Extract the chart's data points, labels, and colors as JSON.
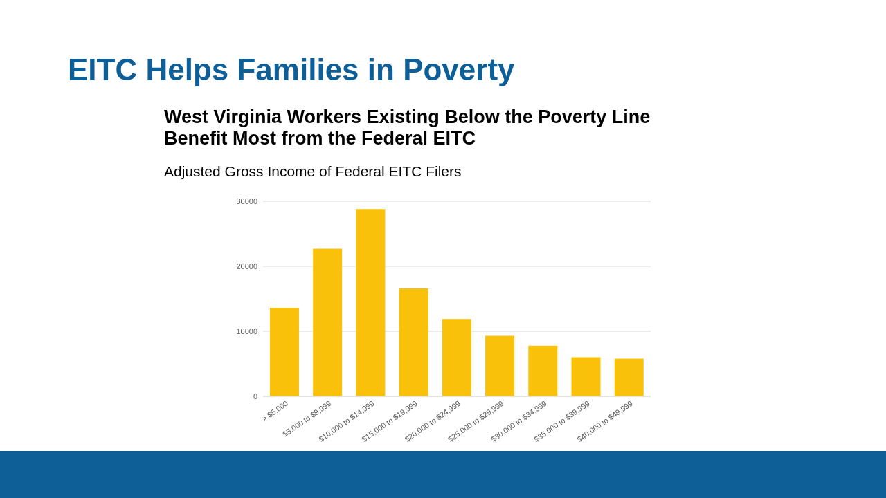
{
  "chart_data": {
    "type": "bar",
    "title": "EITC Helps Families in Poverty",
    "subtitle": "West Virginia Workers Existing Below the Poverty Line\nBenefit Most from the Federal EITC",
    "annotations": [
      "Adjusted Gross Income of Federal EITC Filers"
    ],
    "categories": [
      "> $5,000",
      "$5,000 to $9,999",
      "$10,000 to $14,999",
      "$15,000 to $19,999",
      "$20,000 to $24,999",
      "$25,000 to $29,999",
      "$30,000 to $34,999",
      "$35,000 to $39,999",
      "$40,000 to $49,999"
    ],
    "values": [
      13600,
      22700,
      28800,
      16600,
      11900,
      9300,
      7800,
      6000,
      5800
    ],
    "color": "#f9c10a",
    "ylim": [
      0,
      30000
    ],
    "yticks": [
      0,
      10000,
      20000,
      30000
    ],
    "grid": "y"
  }
}
